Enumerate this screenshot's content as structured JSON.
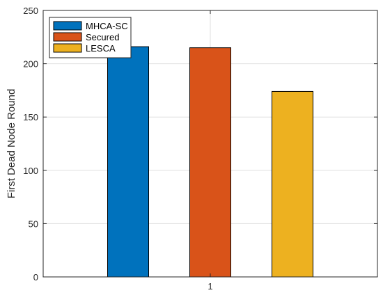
{
  "chart_data": {
    "type": "bar",
    "categories": [
      "1"
    ],
    "series": [
      {
        "name": "MHCA-SC",
        "values": [
          216
        ],
        "color": "#0072BD"
      },
      {
        "name": "Secured",
        "values": [
          215
        ],
        "color": "#D95319"
      },
      {
        "name": "LESCA",
        "values": [
          174
        ],
        "color": "#EDB120"
      }
    ],
    "xlabel": "",
    "ylabel": "First Dead Node Round",
    "ylim": [
      0,
      250
    ],
    "yticks": [
      0,
      50,
      100,
      150,
      200,
      250
    ],
    "xticks": [
      "1"
    ],
    "grid": true,
    "legend_position": "top-left"
  }
}
